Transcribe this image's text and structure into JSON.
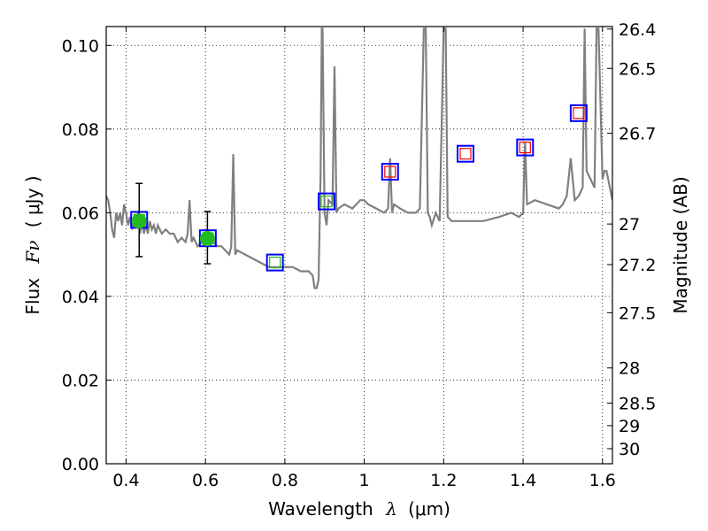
{
  "chart_data": {
    "type": "scatter",
    "xlabel": "Wavelength",
    "xlabel_symbol": "λ",
    "xlabel_unit": "(μm)",
    "ylabel": "Flux",
    "ylabel_symbol": "Fν",
    "ylabel_unit": "( μJy )",
    "y2label": "Magnitude (AB)",
    "xlim": [
      0.35,
      1.625
    ],
    "ylim": [
      0.0,
      0.1045
    ],
    "x_ticks": [
      0.4,
      0.6,
      0.8,
      1.0,
      1.2,
      1.4,
      1.6
    ],
    "x_tick_labels": [
      "0.4",
      "0.6",
      "0.8",
      "1",
      "1.2",
      "1.4",
      "1.6"
    ],
    "y_ticks": [
      0.0,
      0.02,
      0.04,
      0.06,
      0.08,
      0.1
    ],
    "y_tick_labels": [
      "0.00",
      "0.02",
      "0.04",
      "0.06",
      "0.08",
      "0.10"
    ],
    "y2_ticks": [
      {
        "flux": 0.1039,
        "label": "26.4"
      },
      {
        "flux": 0.0945,
        "label": "26.5"
      },
      {
        "flux": 0.079,
        "label": "26.7"
      },
      {
        "flux": 0.0573,
        "label": "27"
      },
      {
        "flux": 0.0476,
        "label": "27.2"
      },
      {
        "flux": 0.0361,
        "label": "27.5"
      },
      {
        "flux": 0.0229,
        "label": "28"
      },
      {
        "flux": 0.0145,
        "label": "28.5"
      },
      {
        "flux": 0.0091,
        "label": "29"
      },
      {
        "flux": 0.0036,
        "label": "30"
      }
    ],
    "grid": true,
    "colors": {
      "model": "#808080",
      "observed": "#22bb22",
      "box_outer": "#0000ff",
      "box_inner_optical": "#22bb22",
      "box_inner_nir": "#ff0000",
      "axes": "#000000"
    },
    "model_spectrum": {
      "x": [
        0.35,
        0.355,
        0.36,
        0.365,
        0.37,
        0.375,
        0.38,
        0.385,
        0.39,
        0.395,
        0.4,
        0.405,
        0.41,
        0.415,
        0.42,
        0.425,
        0.43,
        0.435,
        0.44,
        0.445,
        0.45,
        0.455,
        0.46,
        0.465,
        0.47,
        0.475,
        0.48,
        0.49,
        0.5,
        0.51,
        0.52,
        0.53,
        0.54,
        0.55,
        0.555,
        0.56,
        0.565,
        0.57,
        0.58,
        0.59,
        0.6,
        0.61,
        0.62,
        0.63,
        0.64,
        0.65,
        0.66,
        0.665,
        0.67,
        0.675,
        0.68,
        0.7,
        0.72,
        0.74,
        0.76,
        0.78,
        0.8,
        0.82,
        0.84,
        0.86,
        0.87,
        0.875,
        0.88,
        0.885,
        0.89,
        0.893,
        0.895,
        0.9,
        0.905,
        0.91,
        0.92,
        0.925,
        0.93,
        0.935,
        0.95,
        0.97,
        0.99,
        1.0,
        1.01,
        1.03,
        1.05,
        1.06,
        1.065,
        1.07,
        1.075,
        1.09,
        1.11,
        1.13,
        1.14,
        1.15,
        1.155,
        1.16,
        1.165,
        1.17,
        1.18,
        1.19,
        1.2,
        1.205,
        1.21,
        1.22,
        1.26,
        1.3,
        1.34,
        1.37,
        1.39,
        1.4,
        1.405,
        1.41,
        1.43,
        1.46,
        1.49,
        1.5,
        1.51,
        1.52,
        1.53,
        1.54,
        1.55,
        1.555,
        1.56,
        1.57,
        1.58,
        1.585,
        1.59,
        1.6,
        1.605,
        1.61,
        1.625
      ],
      "y": [
        0.064,
        0.063,
        0.06,
        0.056,
        0.054,
        0.06,
        0.058,
        0.06,
        0.057,
        0.062,
        0.06,
        0.057,
        0.059,
        0.056,
        0.059,
        0.057,
        0.06,
        0.055,
        0.058,
        0.055,
        0.057,
        0.055,
        0.058,
        0.056,
        0.057,
        0.055,
        0.057,
        0.055,
        0.056,
        0.055,
        0.055,
        0.053,
        0.054,
        0.053,
        0.055,
        0.063,
        0.053,
        0.054,
        0.052,
        0.053,
        0.052,
        0.053,
        0.053,
        0.052,
        0.052,
        0.051,
        0.05,
        0.052,
        0.074,
        0.05,
        0.051,
        0.05,
        0.049,
        0.048,
        0.047,
        0.047,
        0.047,
        0.047,
        0.046,
        0.046,
        0.045,
        0.042,
        0.042,
        0.044,
        0.07,
        0.104,
        0.104,
        0.06,
        0.057,
        0.063,
        0.062,
        0.095,
        0.06,
        0.061,
        0.062,
        0.061,
        0.063,
        0.063,
        0.062,
        0.061,
        0.06,
        0.061,
        0.073,
        0.06,
        0.062,
        0.061,
        0.06,
        0.06,
        0.061,
        0.104,
        0.104,
        0.06,
        0.059,
        0.057,
        0.06,
        0.058,
        0.104,
        0.104,
        0.059,
        0.058,
        0.058,
        0.058,
        0.059,
        0.06,
        0.059,
        0.06,
        0.077,
        0.062,
        0.063,
        0.062,
        0.061,
        0.062,
        0.064,
        0.073,
        0.063,
        0.064,
        0.066,
        0.104,
        0.07,
        0.068,
        0.066,
        0.104,
        0.104,
        0.068,
        0.07,
        0.07,
        0.063
      ]
    },
    "observed_points": [
      {
        "x": 0.433,
        "y": 0.058,
        "yerr_low": 0.0495,
        "yerr_high": 0.067
      },
      {
        "x": 0.605,
        "y": 0.0538,
        "yerr_low": 0.0478,
        "yerr_high": 0.0603
      }
    ],
    "model_photometry": [
      {
        "x": 0.433,
        "y": 0.0583,
        "band": "optical"
      },
      {
        "x": 0.606,
        "y": 0.0539,
        "band": "optical"
      },
      {
        "x": 0.775,
        "y": 0.0481,
        "band": "optical"
      },
      {
        "x": 0.905,
        "y": 0.0627,
        "band": "optical"
      },
      {
        "x": 1.065,
        "y": 0.0698,
        "band": "nir"
      },
      {
        "x": 1.255,
        "y": 0.0741,
        "band": "nir"
      },
      {
        "x": 1.405,
        "y": 0.0756,
        "band": "nir"
      },
      {
        "x": 1.54,
        "y": 0.0838,
        "band": "nir"
      }
    ]
  }
}
